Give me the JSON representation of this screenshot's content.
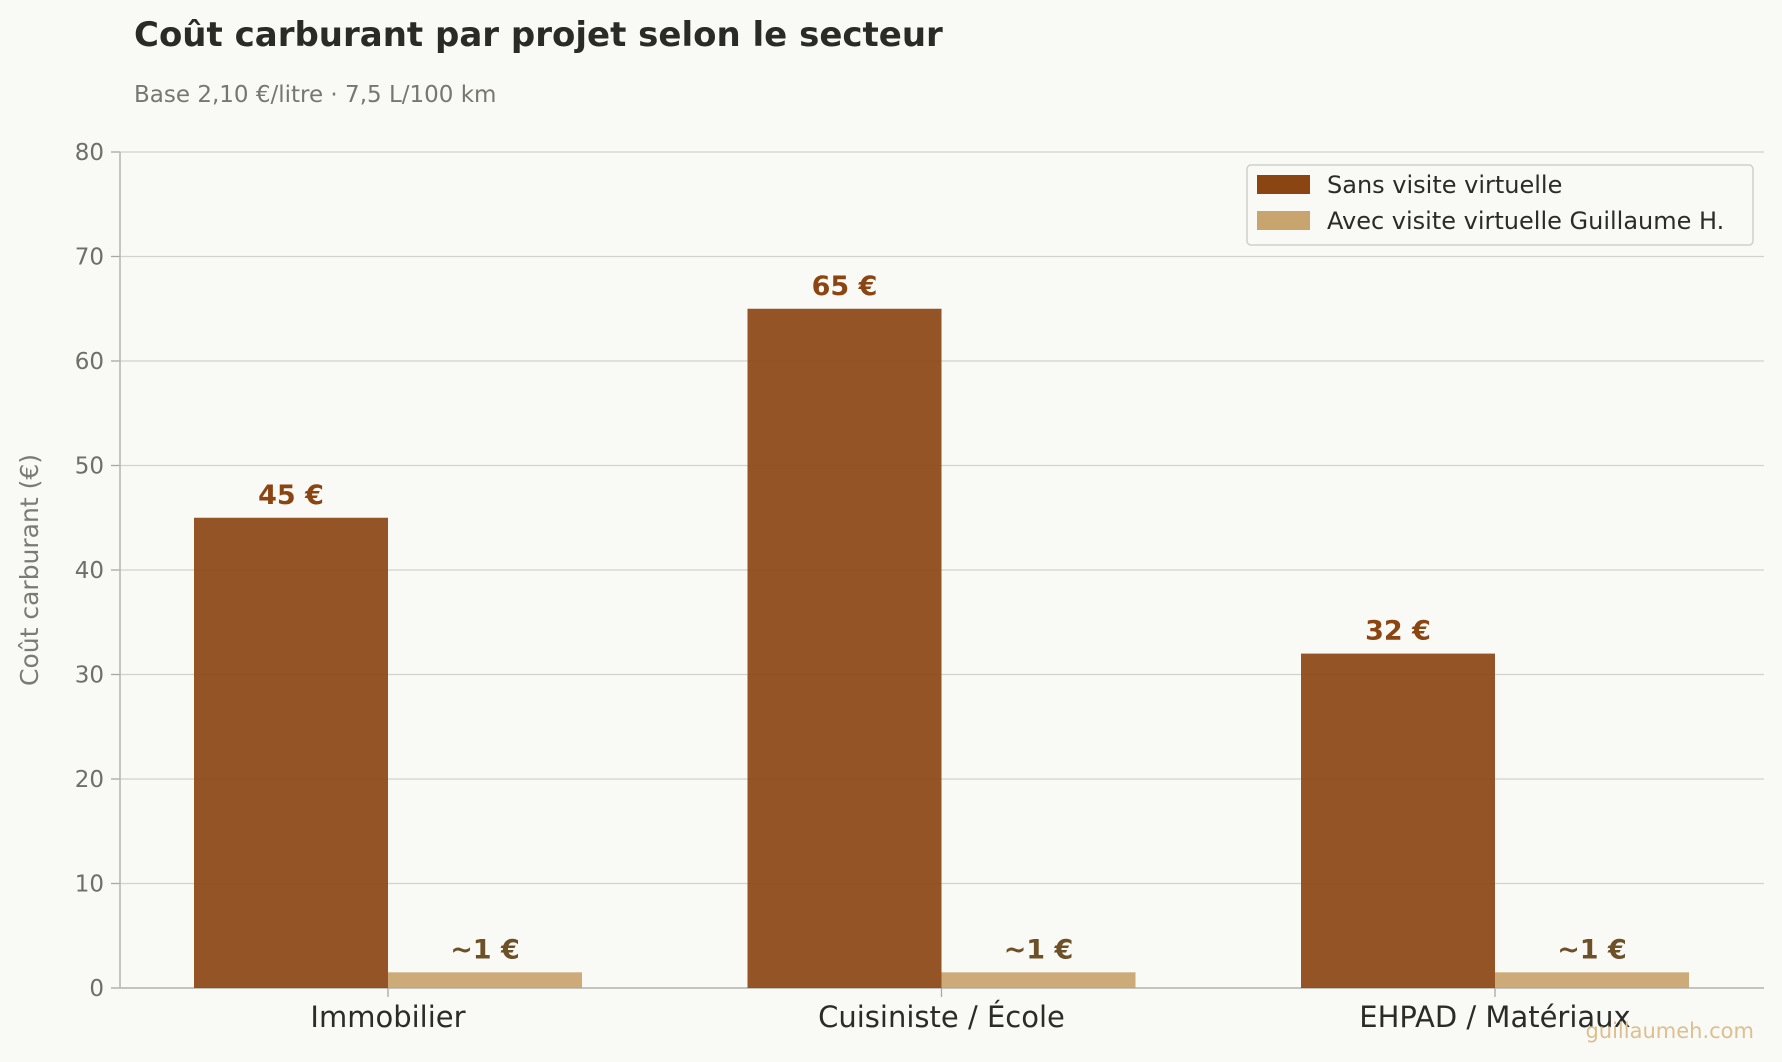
{
  "chart_data": {
    "type": "bar",
    "title": "Coût carburant par projet selon le secteur",
    "subtitle": "Base 2,10 €/litre · 7,5 L/100 km",
    "ylabel": "Coût carburant (€)",
    "xlabel": "",
    "ylim": [
      0,
      80
    ],
    "yticks": [
      0,
      10,
      20,
      30,
      40,
      50,
      60,
      70,
      80
    ],
    "grid": true,
    "legend_position": "top-right",
    "categories": [
      "Immobilier",
      "Cuisiniste / École",
      "EHPAD / Matériaux"
    ],
    "series": [
      {
        "name": "Sans visite virtuelle",
        "values": [
          45,
          65,
          32
        ],
        "labels": [
          "45 €",
          "65 €",
          "32 €"
        ],
        "color": "#8b4513",
        "label_color": "#8b4513"
      },
      {
        "name": "Avec visite virtuelle Guillaume H.",
        "values": [
          1.5,
          1.5,
          1.5
        ],
        "labels": [
          "~1 €",
          "~1 €",
          "~1 €"
        ],
        "color": "#c8a46e",
        "label_color": "#6e5028"
      }
    ]
  },
  "watermark": "guillaumeh.com"
}
